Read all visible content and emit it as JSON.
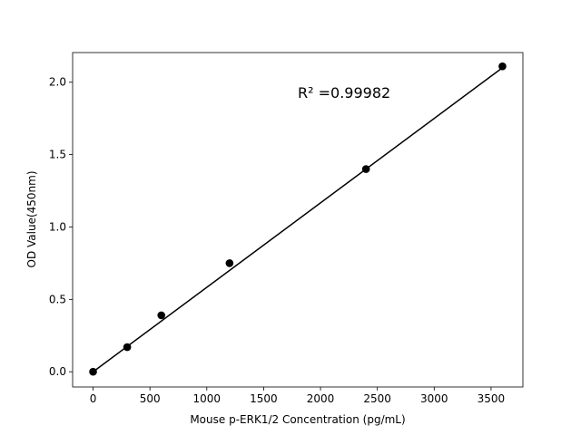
{
  "chart_data": {
    "type": "scatter",
    "x_label": "Mouse p-ERK1/2 Concentration (pg/mL)",
    "y_label": "OD Value(450nm)",
    "annotation": "R² =0.99982",
    "series": [
      {
        "color": "#000000",
        "x": [
          0,
          300,
          600,
          1200,
          2400,
          3600
        ],
        "values": [
          0.0,
          0.17,
          0.39,
          0.75,
          1.4,
          2.11
        ]
      }
    ],
    "fit": {
      "color": "#000000",
      "x": [
        0,
        3600
      ],
      "values": [
        0.0,
        2.1
      ]
    },
    "xlim": [
      -180,
      3780
    ],
    "ylim": [
      -0.105,
      2.205
    ],
    "xticks": [
      0,
      500,
      1000,
      1500,
      2000,
      2500,
      3000,
      3500
    ],
    "yticks": [
      {
        "value": 0,
        "label": "0.0"
      },
      0.5,
      {
        "value": 1,
        "label": "1.0"
      },
      1.5,
      {
        "value": 2,
        "label": "2.0"
      }
    ]
  }
}
